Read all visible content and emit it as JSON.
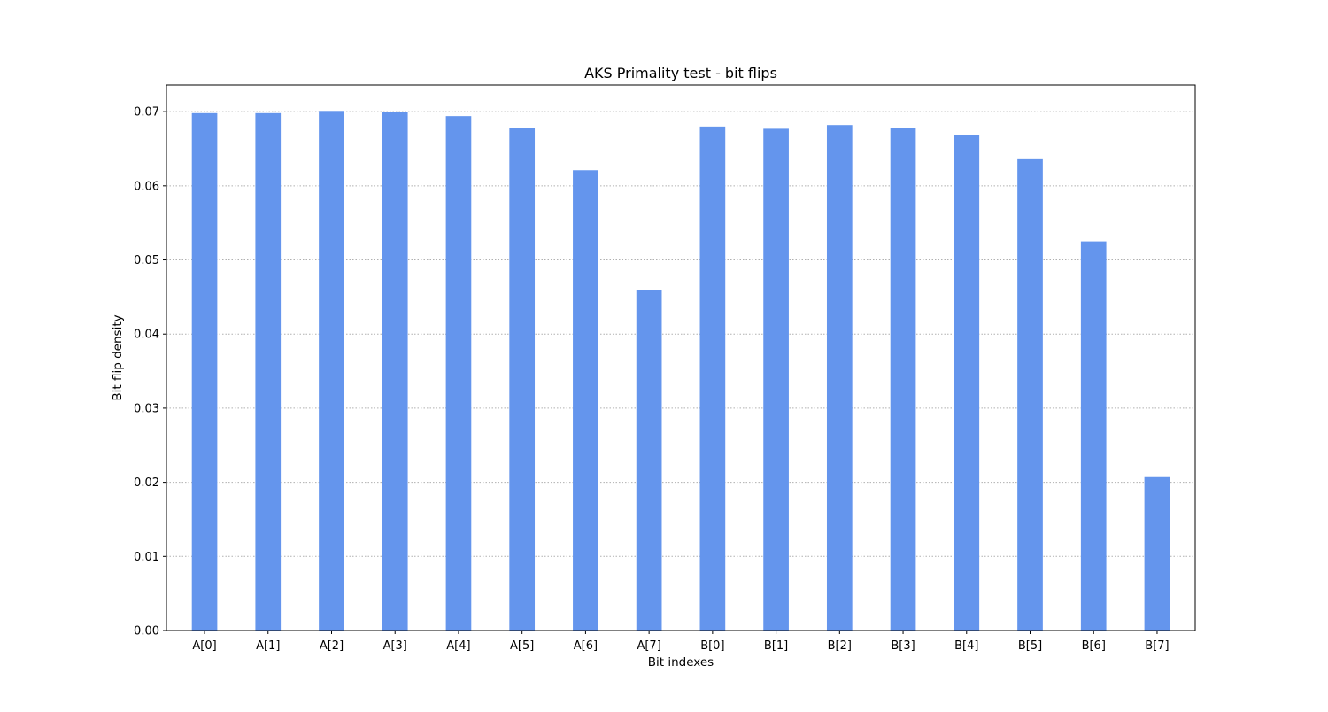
{
  "chart_data": {
    "type": "bar",
    "title": "AKS Primality test - bit flips",
    "xlabel": "Bit indexes",
    "ylabel": "Bit flip density",
    "categories": [
      "A[0]",
      "A[1]",
      "A[2]",
      "A[3]",
      "A[4]",
      "A[5]",
      "A[6]",
      "A[7]",
      "B[0]",
      "B[1]",
      "B[2]",
      "B[3]",
      "B[4]",
      "B[5]",
      "B[6]",
      "B[7]"
    ],
    "values": [
      0.0698,
      0.0698,
      0.0701,
      0.0699,
      0.0694,
      0.0678,
      0.0621,
      0.046,
      0.068,
      0.0677,
      0.0682,
      0.0678,
      0.0668,
      0.0637,
      0.0525,
      0.0207
    ],
    "ylim": [
      0,
      0.0736
    ],
    "yticks": [
      0.0,
      0.01,
      0.02,
      0.03,
      0.04,
      0.05,
      0.06,
      0.07
    ],
    "ytick_labels": [
      "0.00",
      "0.01",
      "0.02",
      "0.03",
      "0.04",
      "0.05",
      "0.06",
      "0.07"
    ],
    "grid": "y-axis dotted",
    "bar_color": "#6495ED",
    "grid_color": "#b0b0b0"
  }
}
